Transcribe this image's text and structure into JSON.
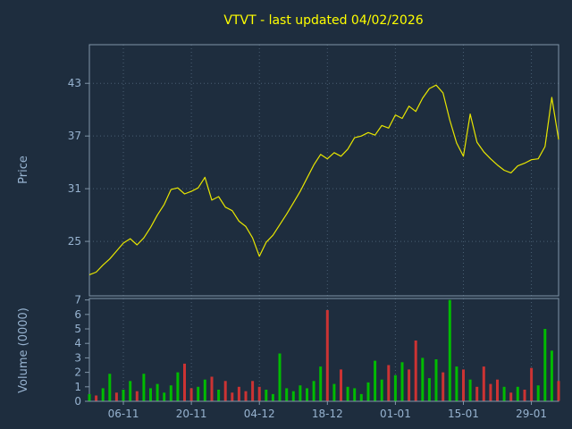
{
  "title": "VTVT - last updated 04/02/2026",
  "colors": {
    "background": "#1e2d3e",
    "title": "#ffff00",
    "price_line": "#e8e600",
    "axis_text": "#97b3d0",
    "border": "#8095a8",
    "grid": "#4a5f73",
    "volume_up": "#00bb00",
    "volume_down": "#cc3333"
  },
  "chart_data": {
    "type": "line+bar",
    "title": "VTVT - last updated 04/02/2026",
    "legend": "none",
    "grid": "dotted",
    "x_tick_labels": [
      "06-11",
      "20-11",
      "04-12",
      "18-12",
      "01-01",
      "15-01",
      "29-01"
    ],
    "x_tick_indices": [
      5,
      15,
      25,
      35,
      45,
      55,
      65
    ],
    "price": {
      "ylabel": "Price",
      "ticks": [
        25,
        31,
        37,
        43
      ],
      "ylim": [
        18.8,
        47.4
      ],
      "values": [
        21.2,
        21.5,
        22.3,
        23.0,
        23.9,
        24.8,
        25.3,
        24.6,
        25.4,
        26.6,
        28.0,
        29.2,
        30.9,
        31.1,
        30.4,
        30.7,
        31.1,
        32.3,
        29.7,
        30.1,
        28.9,
        28.5,
        27.3,
        26.7,
        25.4,
        23.3,
        24.9,
        25.7,
        26.9,
        28.1,
        29.4,
        30.7,
        32.2,
        33.7,
        34.9,
        34.4,
        35.1,
        34.7,
        35.5,
        36.8,
        37.0,
        37.4,
        37.1,
        38.2,
        37.9,
        39.4,
        39.0,
        40.4,
        39.8,
        41.3,
        42.4,
        42.8,
        41.9,
        38.8,
        36.2,
        34.7,
        39.5,
        36.3,
        35.2,
        34.4,
        33.7,
        33.1,
        32.8,
        33.6,
        33.9,
        34.3,
        34.4,
        35.8,
        41.4,
        36.6
      ]
    },
    "volume": {
      "ylabel": "Volume (0000)",
      "ticks": [
        0,
        1,
        2,
        3,
        4,
        5,
        6,
        7
      ],
      "ylim": [
        0,
        7.1
      ],
      "values": [
        0.5,
        0.4,
        0.9,
        1.9,
        0.6,
        0.8,
        1.4,
        0.7,
        1.9,
        0.9,
        1.2,
        0.6,
        1.1,
        2.0,
        2.6,
        0.9,
        1.0,
        1.5,
        1.7,
        0.8,
        1.4,
        0.6,
        1.0,
        0.7,
        1.4,
        1.0,
        0.8,
        0.5,
        3.3,
        0.9,
        0.7,
        1.1,
        0.9,
        1.4,
        2.4,
        6.3,
        1.2,
        2.2,
        1.0,
        0.9,
        0.5,
        1.3,
        2.8,
        1.5,
        2.5,
        1.8,
        2.7,
        2.2,
        4.2,
        3.0,
        1.6,
        2.9,
        2.0,
        7.0,
        2.4,
        2.2,
        1.5,
        1.0,
        2.4,
        1.2,
        1.5,
        1.0,
        0.6,
        1.0,
        0.8,
        2.3,
        1.1,
        5.0,
        3.5,
        1.4
      ],
      "directions": [
        "u",
        "d",
        "u",
        "u",
        "d",
        "u",
        "u",
        "d",
        "u",
        "u",
        "u",
        "u",
        "u",
        "u",
        "d",
        "d",
        "u",
        "u",
        "d",
        "u",
        "d",
        "d",
        "d",
        "d",
        "d",
        "d",
        "u",
        "u",
        "u",
        "u",
        "u",
        "u",
        "u",
        "u",
        "u",
        "d",
        "u",
        "d",
        "u",
        "u",
        "u",
        "u",
        "u",
        "u",
        "d",
        "u",
        "u",
        "d",
        "d",
        "u",
        "u",
        "u",
        "d",
        "u",
        "u",
        "d",
        "u",
        "d",
        "d",
        "d",
        "d",
        "u",
        "d",
        "u",
        "d",
        "d",
        "u",
        "u",
        "u",
        "d"
      ]
    }
  }
}
